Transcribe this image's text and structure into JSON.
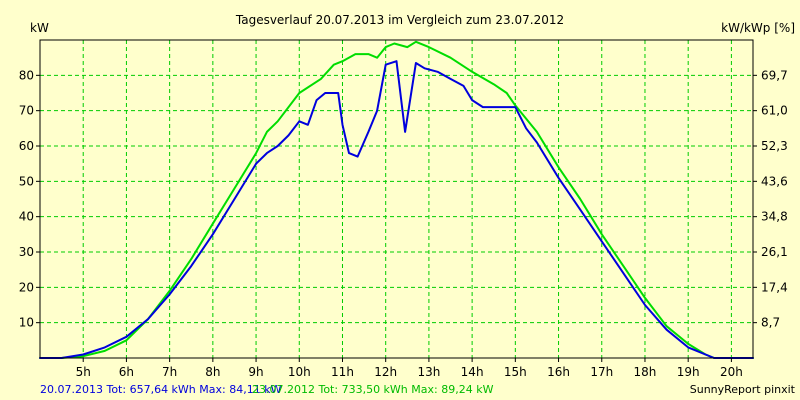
{
  "chart_data": {
    "type": "line",
    "title": "Tagesverlauf 20.07.2013 im Vergleich zum 23.07.2012",
    "ylabel_left": "kW",
    "ylabel_right": "kW/kWp [%]",
    "x_ticks": [
      "5h",
      "6h",
      "7h",
      "8h",
      "9h",
      "10h",
      "11h",
      "12h",
      "13h",
      "14h",
      "15h",
      "16h",
      "17h",
      "18h",
      "19h",
      "20h"
    ],
    "xlim": [
      4.0,
      20.5
    ],
    "ylim": [
      0,
      90
    ],
    "y_ticks_left": [
      "10",
      "20",
      "30",
      "40",
      "50",
      "60",
      "70",
      "80"
    ],
    "y_ticks_right": [
      "8,7",
      "17,4",
      "26,1",
      "34,8",
      "43,6",
      "52,3",
      "61,0",
      "69,7"
    ],
    "grid": true,
    "series": [
      {
        "name": "20.07.2013",
        "color": "#0000DD",
        "points": [
          [
            4.0,
            0
          ],
          [
            4.5,
            0
          ],
          [
            5.0,
            1
          ],
          [
            5.5,
            3
          ],
          [
            6.0,
            6
          ],
          [
            6.5,
            11
          ],
          [
            7.0,
            18
          ],
          [
            7.5,
            26
          ],
          [
            8.0,
            35
          ],
          [
            8.5,
            45
          ],
          [
            9.0,
            55
          ],
          [
            9.25,
            58
          ],
          [
            9.5,
            60
          ],
          [
            9.75,
            63
          ],
          [
            10.0,
            67
          ],
          [
            10.2,
            66
          ],
          [
            10.4,
            73
          ],
          [
            10.6,
            75
          ],
          [
            10.9,
            75
          ],
          [
            11.0,
            66
          ],
          [
            11.15,
            58
          ],
          [
            11.35,
            57
          ],
          [
            11.6,
            64
          ],
          [
            11.8,
            70
          ],
          [
            12.0,
            83
          ],
          [
            12.25,
            84
          ],
          [
            12.45,
            64
          ],
          [
            12.7,
            83.5
          ],
          [
            12.9,
            82
          ],
          [
            13.2,
            81
          ],
          [
            13.5,
            79
          ],
          [
            13.8,
            77
          ],
          [
            14.0,
            73
          ],
          [
            14.25,
            71
          ],
          [
            14.5,
            71
          ],
          [
            14.75,
            71
          ],
          [
            15.0,
            71
          ],
          [
            15.25,
            65
          ],
          [
            15.5,
            61
          ],
          [
            16.0,
            51
          ],
          [
            16.5,
            42
          ],
          [
            17.0,
            33
          ],
          [
            17.5,
            24
          ],
          [
            18.0,
            15
          ],
          [
            18.5,
            8
          ],
          [
            19.0,
            3
          ],
          [
            19.4,
            1
          ],
          [
            19.6,
            0
          ],
          [
            20.5,
            0
          ]
        ]
      },
      {
        "name": "23.07.2012",
        "color": "#00DD00",
        "points": [
          [
            4.0,
            0
          ],
          [
            4.5,
            0
          ],
          [
            5.0,
            0.5
          ],
          [
            5.5,
            2
          ],
          [
            6.0,
            5
          ],
          [
            6.5,
            11
          ],
          [
            7.0,
            19
          ],
          [
            7.5,
            28
          ],
          [
            8.0,
            38
          ],
          [
            8.5,
            48
          ],
          [
            9.0,
            58
          ],
          [
            9.25,
            64
          ],
          [
            9.5,
            67
          ],
          [
            10.0,
            75
          ],
          [
            10.5,
            79
          ],
          [
            10.8,
            83
          ],
          [
            11.0,
            84
          ],
          [
            11.3,
            86
          ],
          [
            11.6,
            86
          ],
          [
            11.8,
            85
          ],
          [
            12.0,
            88
          ],
          [
            12.2,
            89
          ],
          [
            12.5,
            88
          ],
          [
            12.7,
            89.5
          ],
          [
            13.0,
            88
          ],
          [
            13.5,
            85
          ],
          [
            14.0,
            81
          ],
          [
            14.5,
            77.5
          ],
          [
            14.8,
            75
          ],
          [
            15.0,
            71.5
          ],
          [
            15.5,
            64
          ],
          [
            16.0,
            54
          ],
          [
            16.5,
            45
          ],
          [
            17.0,
            35
          ],
          [
            17.5,
            26
          ],
          [
            18.0,
            17
          ],
          [
            18.5,
            9
          ],
          [
            19.0,
            4
          ],
          [
            19.4,
            1
          ],
          [
            19.6,
            0
          ],
          [
            20.5,
            0
          ]
        ]
      }
    ],
    "footer": {
      "s1_label": "20.07.2013 Tot: 657,64 kWh Max: 84,11 kW",
      "s2_label": "23.07.2012 Tot: 733,50 kWh Max: 89,24 kW",
      "credit": "SunnyReport pinxit"
    },
    "colors": {
      "background": "#FFFFCC",
      "grid": "#00CC00",
      "axis": "#000000"
    }
  }
}
